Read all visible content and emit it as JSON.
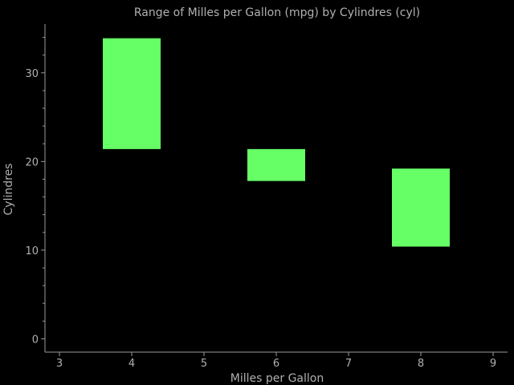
{
  "chart_data": {
    "type": "bar",
    "subtype": "floating-range",
    "title": "Range of Milles per Gallon (mpg) by Cylindres (cyl)",
    "xlabel": "Milles per Gallon",
    "ylabel": "Cylindres",
    "xlim": [
      2.8,
      9.2
    ],
    "ylim": [
      -1.5,
      35.5
    ],
    "xticks": [
      3,
      4,
      5,
      6,
      7,
      8,
      9
    ],
    "yticks": [
      0,
      10,
      20,
      30
    ],
    "grid": false,
    "bar_color": "#66ff66",
    "background": "#000000",
    "bar_width": 0.8,
    "ranges": [
      {
        "x": 4,
        "low": 21.4,
        "high": 33.9
      },
      {
        "x": 6,
        "low": 17.8,
        "high": 21.4
      },
      {
        "x": 8,
        "low": 10.4,
        "high": 19.2
      }
    ]
  }
}
